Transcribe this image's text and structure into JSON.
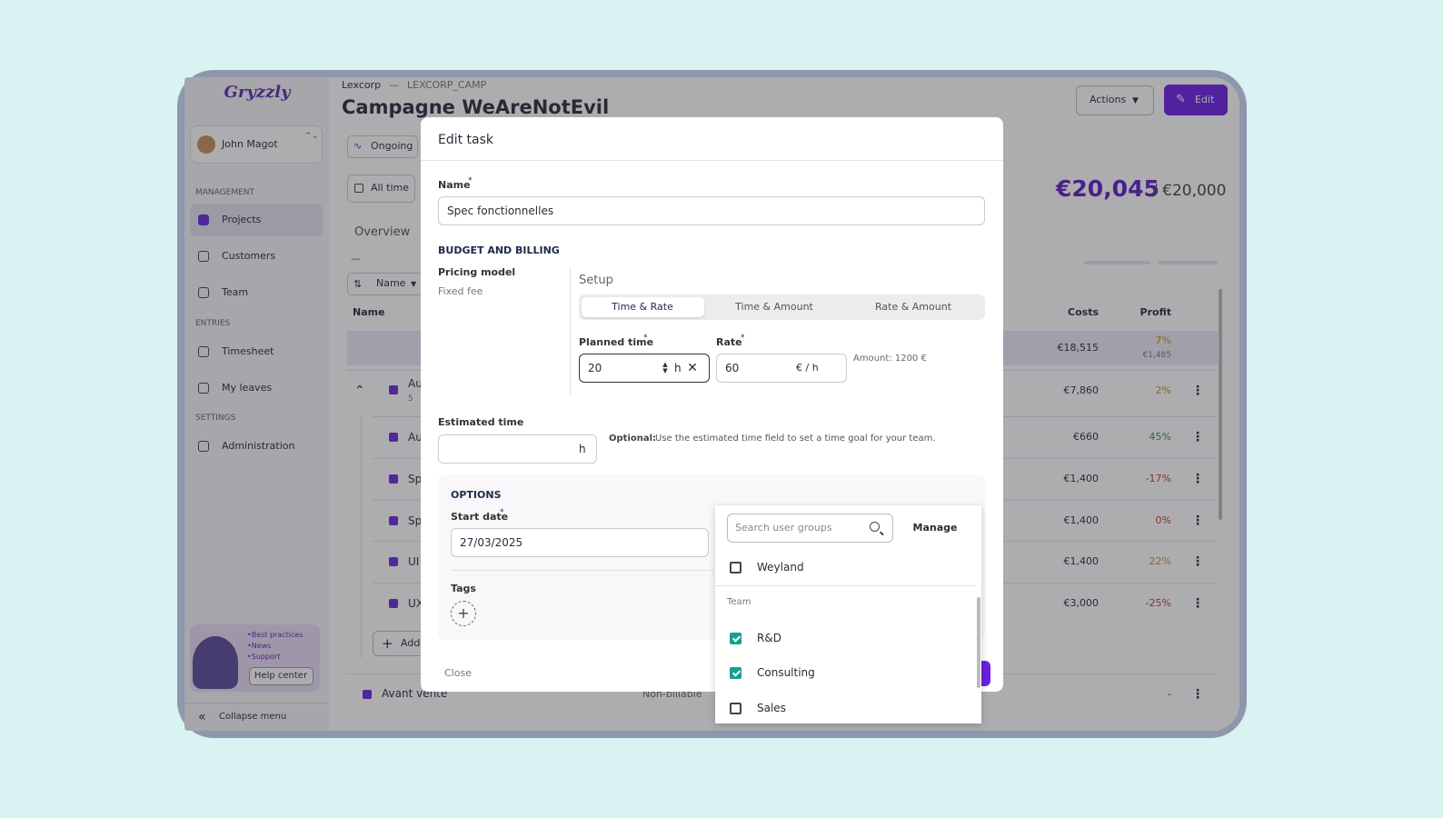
{
  "sidebar": {
    "logo": "Gryzzly",
    "user": "John Magot",
    "sections": [
      {
        "title": "MANAGEMENT",
        "items": [
          "Projects",
          "Customers",
          "Team"
        ]
      },
      {
        "title": "ENTRIES",
        "items": [
          "Timesheet",
          "My leaves"
        ]
      },
      {
        "title": "SETTINGS",
        "items": [
          "Administration"
        ]
      }
    ],
    "help": {
      "links": [
        "•Best practices",
        "•News",
        "•Support"
      ],
      "button": "Help center"
    },
    "collapse": "Collapse menu"
  },
  "header": {
    "breadcrumb": [
      "Lexcorp",
      "—",
      "LEXCORP_CAMP"
    ],
    "title": "Campagne WeAreNotEvil",
    "actions": "Actions",
    "edit": "Edit",
    "status": "Ongoing",
    "period": "All time",
    "total": "€20,045",
    "budget": "/ €20,000",
    "tab": "Overview",
    "dash": "—",
    "sort": "Name"
  },
  "table": {
    "columns": [
      "Name",
      "Costs",
      "Profit"
    ],
    "summary": {
      "costs": "€18,515",
      "profit": "7%",
      "profit_amount": "€1,485",
      "color": "#c98a1e"
    },
    "rows": [
      {
        "name": "Au",
        "sub": "5",
        "costs": "€7,860",
        "profit": "2%",
        "color": "#c98a1e"
      },
      {
        "name": "Au",
        "costs": "€660",
        "profit": "45%",
        "color": "#2f8f4e"
      },
      {
        "name": "Sp",
        "costs": "€1,400",
        "profit": "-17%",
        "color": "#c0392b"
      },
      {
        "name": "Sp",
        "costs": "€1,400",
        "profit": "0%",
        "color": "#c0392b"
      },
      {
        "name": "UI",
        "costs": "€1,400",
        "profit": "22%",
        "color": "#c98a1e"
      },
      {
        "name": "UX",
        "costs": "€3,000",
        "profit": "-25%",
        "color": "#c0392b"
      }
    ],
    "add": "Add",
    "footer_row": {
      "name": "Avant vente",
      "billing": "Non-billable",
      "profit": "-"
    }
  },
  "modal": {
    "title": "Edit task",
    "name_label": "Name",
    "required": "*",
    "name_value": "Spec fonctionnelles",
    "budget_heading": "BUDGET AND BILLING",
    "pricing_label": "Pricing model",
    "pricing_value": "Fixed fee",
    "setup": "Setup",
    "tabs": [
      "Time & Rate",
      "Time & Amount",
      "Rate & Amount"
    ],
    "planned_label": "Planned time",
    "planned_value": "20",
    "planned_unit": "h",
    "rate_label": "Rate",
    "rate_value": "60",
    "rate_unit": "€ / h",
    "amount": "Amount: 1200 €",
    "estimated_label": "Estimated time",
    "estimated_unit": "h",
    "optional_bold": "Optional:",
    "optional_text": "Use the estimated time field to set a time goal for your team.",
    "options_heading": "OPTIONS",
    "start_label": "Start date",
    "start_value": "27/03/2025",
    "tags_label": "Tags",
    "close": "Close"
  },
  "dropdown": {
    "search_placeholder": "Search user groups",
    "manage": "Manage",
    "top_option": {
      "label": "Weyland",
      "checked": false
    },
    "group": "Team",
    "options": [
      {
        "label": "R&D",
        "checked": true
      },
      {
        "label": "Consulting",
        "checked": true
      },
      {
        "label": "Sales",
        "checked": false
      }
    ]
  }
}
